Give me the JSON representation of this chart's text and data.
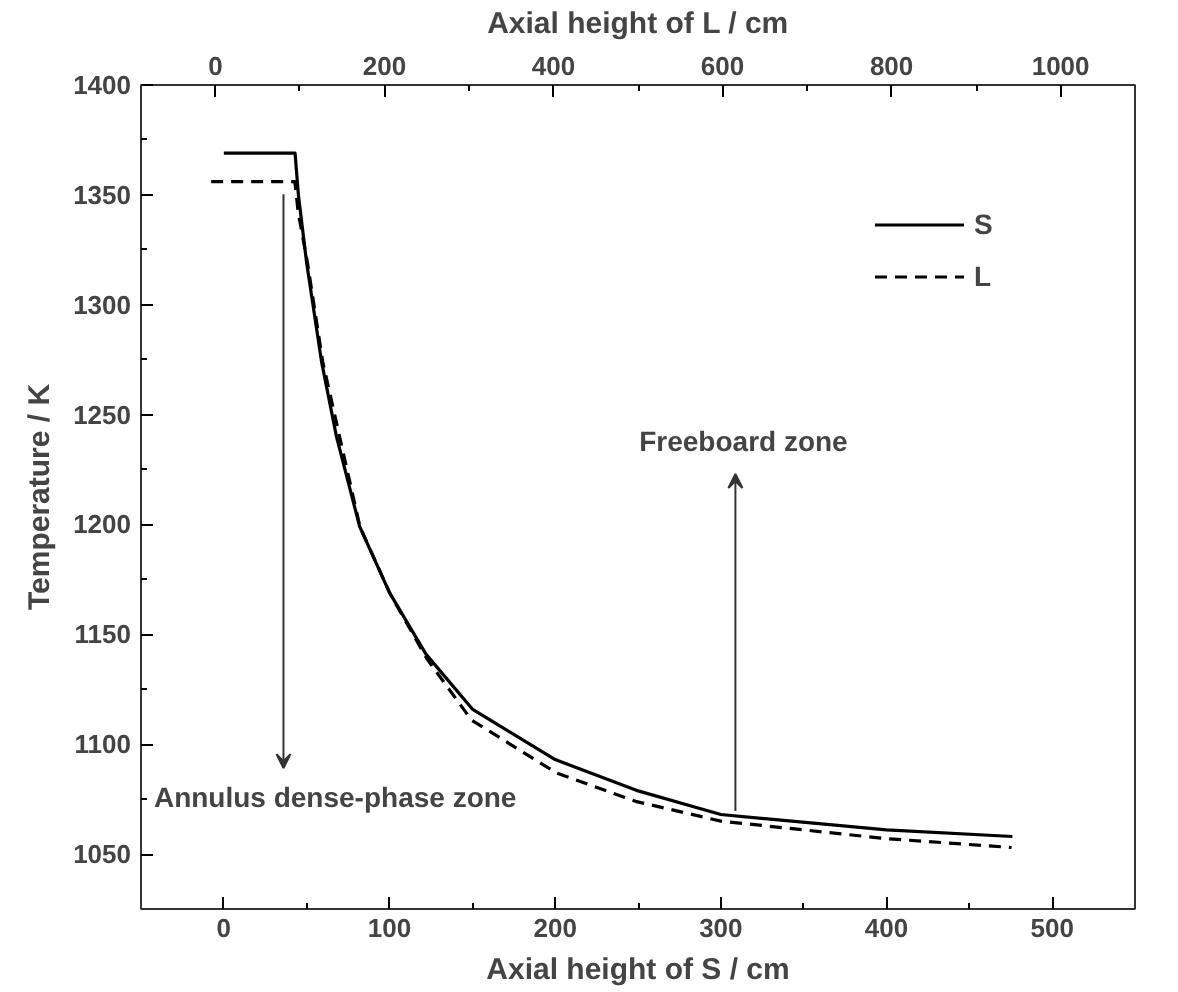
{
  "chart_data": {
    "type": "line",
    "xlabel": "Axial height of S / cm",
    "x2label": "Axial height of L / cm",
    "ylabel": "Temperature / K",
    "xlim": [
      -50,
      550
    ],
    "xticks": [
      0,
      100,
      200,
      300,
      400,
      500
    ],
    "x2lim": [
      -88,
      1088
    ],
    "x2ticks": [
      0,
      200,
      400,
      600,
      800,
      1000
    ],
    "ylim": [
      1025,
      1400
    ],
    "yticks": [
      1050,
      1100,
      1150,
      1200,
      1250,
      1300,
      1350,
      1400
    ],
    "series": [
      {
        "name": "S",
        "color": "#000000",
        "line_style": "solid",
        "x": [
          0,
          43,
          45,
          50,
          59,
          68,
          82,
          100,
          122,
          150,
          200,
          249,
          300,
          400,
          476
        ],
        "values": [
          1369,
          1369,
          1350,
          1319,
          1274,
          1240,
          1199,
          1169,
          1141,
          1116,
          1093,
          1079,
          1068,
          1061,
          1058
        ]
      },
      {
        "name": "L",
        "color": "#000000",
        "line_style": "dashed",
        "axis": "x2",
        "x": [
          -5,
          94,
          98,
          109,
          127,
          171,
          206,
          250,
          303,
          403,
          497,
          598,
          794,
          942
        ],
        "values": [
          1356,
          1356,
          1342,
          1319,
          1274,
          1199,
          1169,
          1139,
          1111,
          1087,
          1074,
          1065,
          1057,
          1053
        ]
      }
    ],
    "annotations": [
      "Annulus dense-phase zone",
      "Freeboard  zone"
    ],
    "legend": "top right",
    "grid": false
  }
}
